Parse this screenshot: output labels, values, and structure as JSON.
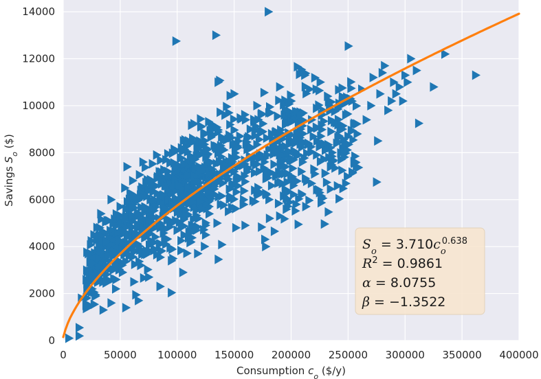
{
  "chart_data": {
    "type": "scatter",
    "title": "",
    "xlabel": "Consumption c_o ($/y)",
    "ylabel": "Savings S_o ($)",
    "xlim": [
      0,
      400000
    ],
    "ylim": [
      0,
      14500
    ],
    "xticks": [
      0,
      50000,
      100000,
      150000,
      200000,
      250000,
      300000,
      350000,
      400000
    ],
    "yticks": [
      0,
      2000,
      4000,
      6000,
      8000,
      10000,
      12000,
      14000
    ],
    "grid": true,
    "background": "#eaeaf2",
    "colors": {
      "points": "#1f77b4",
      "fit": "#ff7f0e",
      "annotation_bg": "#f7e6cf"
    },
    "marker": "triangle-right",
    "point_count_estimate": 1100,
    "fit": {
      "coefficient": 3.71,
      "exponent": 0.638
    },
    "series": [
      {
        "type": "scatter",
        "points": [
          [
            5000,
            100
          ],
          [
            14000,
            200
          ],
          [
            14000,
            550
          ],
          [
            16000,
            1800
          ],
          [
            20000,
            1500
          ],
          [
            22000,
            2300
          ],
          [
            22000,
            3700
          ],
          [
            25000,
            2800
          ],
          [
            26000,
            3300
          ],
          [
            27000,
            4500
          ],
          [
            28000,
            1900
          ],
          [
            30000,
            2600
          ],
          [
            31000,
            3500
          ],
          [
            32000,
            4800
          ],
          [
            33000,
            5400
          ],
          [
            35000,
            1300
          ],
          [
            36000,
            3000
          ],
          [
            38000,
            4200
          ],
          [
            40000,
            5100
          ],
          [
            42000,
            1600
          ],
          [
            42000,
            6000
          ],
          [
            45000,
            3800
          ],
          [
            46000,
            2200
          ],
          [
            48000,
            4600
          ],
          [
            50000,
            5700
          ],
          [
            52000,
            2900
          ],
          [
            54000,
            6500
          ],
          [
            55000,
            1400
          ],
          [
            56000,
            7400
          ],
          [
            58000,
            3600
          ],
          [
            60000,
            5300
          ],
          [
            62000,
            2500
          ],
          [
            64000,
            4400
          ],
          [
            65000,
            6100
          ],
          [
            66000,
            1700
          ],
          [
            68000,
            3200
          ],
          [
            70000,
            7600
          ],
          [
            72000,
            5600
          ],
          [
            75000,
            2700
          ],
          [
            76000,
            4800
          ],
          [
            78000,
            6800
          ],
          [
            80000,
            3900
          ],
          [
            82000,
            7900
          ],
          [
            84000,
            5200
          ],
          [
            85000,
            2300
          ],
          [
            88000,
            6200
          ],
          [
            90000,
            4100
          ],
          [
            92000,
            7200
          ],
          [
            95000,
            3400
          ],
          [
            96000,
            5800
          ],
          [
            98000,
            8100
          ],
          [
            99000,
            12750
          ],
          [
            100000,
            4700
          ],
          [
            102000,
            6600
          ],
          [
            105000,
            2900
          ],
          [
            106000,
            7500
          ],
          [
            108000,
            5300
          ],
          [
            110000,
            8500
          ],
          [
            112000,
            4200
          ],
          [
            115000,
            6800
          ],
          [
            118000,
            3700
          ],
          [
            120000,
            7900
          ],
          [
            122000,
            5600
          ],
          [
            124000,
            8800
          ],
          [
            125000,
            4500
          ],
          [
            128000,
            7100
          ],
          [
            130000,
            9100
          ],
          [
            132000,
            6200
          ],
          [
            134000,
            13000
          ],
          [
            135000,
            5000
          ],
          [
            136000,
            11000
          ],
          [
            138000,
            8100
          ],
          [
            140000,
            6700
          ],
          [
            142000,
            9600
          ],
          [
            145000,
            5500
          ],
          [
            148000,
            7600
          ],
          [
            150000,
            10500
          ],
          [
            152000,
            6800
          ],
          [
            155000,
            8700
          ],
          [
            158000,
            5800
          ],
          [
            160000,
            9400
          ],
          [
            162000,
            7300
          ],
          [
            165000,
            8200
          ],
          [
            168000,
            6400
          ],
          [
            170000,
            10000
          ],
          [
            172000,
            7800
          ],
          [
            175000,
            8900
          ],
          [
            178000,
            6900
          ],
          [
            180000,
            14000
          ],
          [
            181000,
            5200
          ],
          [
            182000,
            9700
          ],
          [
            185000,
            7500
          ],
          [
            188000,
            8600
          ],
          [
            190000,
            10800
          ],
          [
            192000,
            7100
          ],
          [
            195000,
            9200
          ],
          [
            198000,
            8000
          ],
          [
            200000,
            10200
          ],
          [
            202000,
            6600
          ],
          [
            205000,
            8800
          ],
          [
            208000,
            9600
          ],
          [
            210000,
            7600
          ],
          [
            212000,
            11300
          ],
          [
            215000,
            8400
          ],
          [
            218000,
            9400
          ],
          [
            220000,
            7300
          ],
          [
            222000,
            10700
          ],
          [
            225000,
            6300
          ],
          [
            226000,
            8700
          ],
          [
            228000,
            9800
          ],
          [
            230000,
            8100
          ],
          [
            232000,
            10400
          ],
          [
            235000,
            8900
          ],
          [
            238000,
            9300
          ],
          [
            240000,
            8400
          ],
          [
            242000,
            10100
          ],
          [
            245000,
            9000
          ],
          [
            248000,
            9600
          ],
          [
            250000,
            8700
          ],
          [
            252000,
            10300
          ],
          [
            255000,
            9200
          ],
          [
            258000,
            8800
          ],
          [
            262000,
            10700
          ],
          [
            266000,
            9400
          ],
          [
            270000,
            10000
          ],
          [
            272000,
            11200
          ],
          [
            275000,
            6750
          ],
          [
            276000,
            8500
          ],
          [
            278000,
            10500
          ],
          [
            280000,
            11400
          ],
          [
            282000,
            11700
          ],
          [
            285000,
            9800
          ],
          [
            288000,
            10200
          ],
          [
            290000,
            11000
          ],
          [
            292000,
            10500
          ],
          [
            295000,
            10800
          ],
          [
            298000,
            10200
          ],
          [
            300000,
            11300
          ],
          [
            302000,
            11000
          ],
          [
            305000,
            12000
          ],
          [
            310000,
            11500
          ],
          [
            312000,
            9250
          ],
          [
            325000,
            10800
          ],
          [
            335000,
            12200
          ],
          [
            362000,
            11300
          ]
        ]
      },
      {
        "type": "line",
        "name": "",
        "formula": "S_o = 3.710 c_o^0.638"
      }
    ],
    "annotation": {
      "lines": [
        [
          "S",
          "o",
          " = 3.710",
          "c",
          "o",
          "0.638"
        ],
        [
          "R",
          "2",
          " = 0.9861"
        ],
        [
          "α",
          " = 8.0755"
        ],
        [
          "β",
          " = −1.3522"
        ]
      ]
    }
  }
}
